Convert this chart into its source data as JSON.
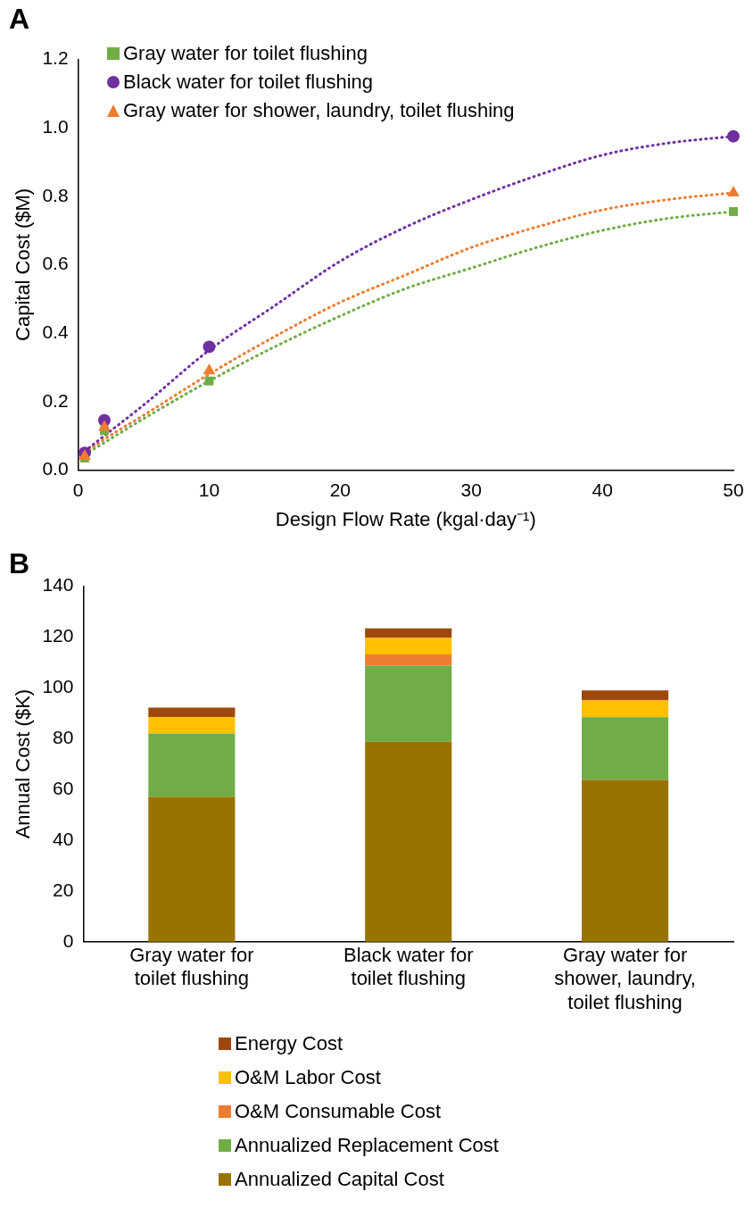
{
  "chart_data": [
    {
      "type": "scatter",
      "title": "A",
      "xlabel": "Design Flow Rate (kgal·day⁻¹)",
      "ylabel": "Capital Cost ($M)",
      "xlim": [
        0,
        50
      ],
      "xticks": [
        0,
        10,
        20,
        30,
        40,
        50
      ],
      "ylim": [
        0,
        1.2
      ],
      "yticks": [
        {
          "value": 0,
          "label": "0.0"
        },
        {
          "value": 0.2,
          "label": "0.2"
        },
        {
          "value": 0.4,
          "label": "0.4"
        },
        {
          "value": 0.6,
          "label": "0.6"
        },
        {
          "value": 0.8,
          "label": "0.8"
        },
        {
          "value": 1.0,
          "label": "1.0"
        },
        {
          "value": 1.2,
          "label": "1.2"
        }
      ],
      "grid": false,
      "legend": "top left",
      "series": [
        {
          "name": "Gray water for toilet flushing",
          "color": "#70ad47",
          "marker": "square",
          "x": [
            0.5,
            2,
            10,
            50
          ],
          "values": [
            0.035,
            0.115,
            0.26,
            0.755
          ]
        },
        {
          "name": "Black water for toilet flushing",
          "color": "#7030a0",
          "marker": "circle",
          "x": [
            0.5,
            2,
            10,
            50
          ],
          "values": [
            0.05,
            0.145,
            0.36,
            0.975
          ]
        },
        {
          "name": "Gray water for shower, laundry, toilet flushing",
          "color": "#ed7d31",
          "marker": "triangle",
          "x": [
            0.5,
            2,
            10,
            50
          ],
          "values": [
            0.04,
            0.125,
            0.29,
            0.81
          ]
        },
        {
          "type": "line",
          "color": "#70ad47",
          "marker": "none",
          "line_style": "dotted",
          "x": [
            0.5,
            2,
            5,
            10,
            15,
            20,
            25,
            30,
            35,
            40,
            45,
            50
          ],
          "values": [
            0.045,
            0.08,
            0.15,
            0.26,
            0.36,
            0.45,
            0.53,
            0.59,
            0.65,
            0.7,
            0.735,
            0.755
          ]
        },
        {
          "type": "line",
          "color": "#7030a0",
          "marker": "none",
          "line_style": "dotted",
          "x": [
            0.5,
            2,
            5,
            10,
            15,
            20,
            25,
            30,
            35,
            40,
            45,
            50
          ],
          "values": [
            0.055,
            0.1,
            0.19,
            0.35,
            0.48,
            0.61,
            0.71,
            0.79,
            0.86,
            0.92,
            0.955,
            0.975
          ]
        },
        {
          "type": "line",
          "color": "#ed7d31",
          "marker": "none",
          "line_style": "dotted",
          "x": [
            0.5,
            2,
            5,
            10,
            15,
            20,
            25,
            30,
            35,
            40,
            45,
            50
          ],
          "values": [
            0.05,
            0.09,
            0.16,
            0.28,
            0.39,
            0.49,
            0.57,
            0.65,
            0.71,
            0.76,
            0.79,
            0.81
          ]
        }
      ]
    },
    {
      "type": "bar",
      "title": "B",
      "ylabel": "Annual Cost ($K)",
      "categories": [
        "Gray water for toilet flushing",
        "Black water for toilet flushing",
        "Gray water for shower, laundry, toilet flushing"
      ],
      "stacked": true,
      "ylim": [
        0,
        140
      ],
      "yticks": [
        0,
        20,
        40,
        60,
        80,
        100,
        120,
        140
      ],
      "grid": false,
      "legend": "bottom",
      "series": [
        {
          "name": "Annualized Capital Cost",
          "color": "#997300",
          "values": [
            57,
            78.7,
            63.7
          ]
        },
        {
          "name": "Annualized Replacement Cost",
          "color": "#70ad47",
          "values": [
            25,
            30,
            24.7
          ]
        },
        {
          "name": "O&M Consumable Cost",
          "color": "#ed7d31",
          "values": [
            0,
            4.4,
            0
          ]
        },
        {
          "name": "O&M Labor Cost",
          "color": "#ffc000",
          "values": [
            6.5,
            6.5,
            6.6
          ]
        },
        {
          "name": "Energy Cost",
          "color": "#9e480e",
          "values": [
            3.7,
            3.8,
            3.9
          ]
        }
      ]
    }
  ]
}
